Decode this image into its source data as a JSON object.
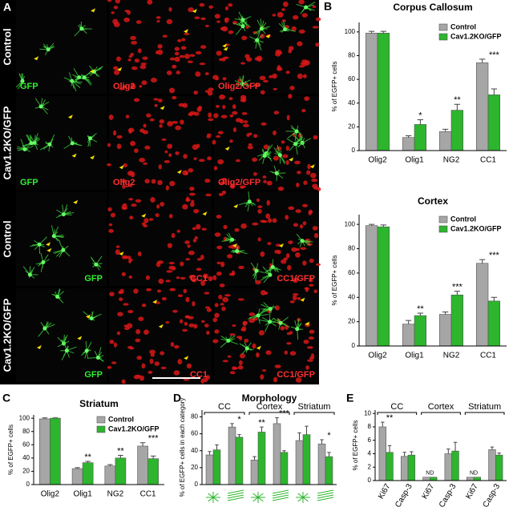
{
  "figure": {
    "panel_labels": [
      "A",
      "B",
      "C",
      "D",
      "E"
    ],
    "row_labels": [
      "Control",
      "Cav1.2KO/GFP",
      "Control",
      "Cav1.2KO/GFP"
    ],
    "image_labels": [
      [
        "GFP",
        "Olig2",
        "Olig2/GFP"
      ],
      [
        "GFP",
        "Olig2",
        "Olig2/GFP"
      ],
      [
        "GFP",
        "CC1",
        "CC1/GFP"
      ],
      [
        "GFP",
        "CC1",
        "CC1/GFP"
      ]
    ]
  },
  "chart_data": [
    {
      "type": "bar",
      "title": "Corpus Callosum",
      "y_label": "% of EGFP+ cells",
      "categories": [
        "Olig2",
        "Olig1",
        "NG2",
        "CC1"
      ],
      "series": [
        {
          "name": "Control",
          "color": "#a6a6a6",
          "values": [
            99,
            11,
            16,
            74
          ],
          "errors": [
            1.5,
            1.5,
            2,
            3
          ]
        },
        {
          "name": "Cav1.2KO/GFP",
          "color": "#2db52d",
          "values": [
            99,
            22,
            34,
            47
          ],
          "errors": [
            1.5,
            4,
            5,
            5
          ]
        }
      ],
      "annotations": [
        null,
        "*",
        "**",
        "***"
      ],
      "ylim": [
        0,
        108
      ],
      "yticks": [
        0,
        20,
        40,
        60,
        80,
        100
      ],
      "legend": "upper right"
    },
    {
      "type": "bar",
      "title": "Cortex",
      "y_label": "% of EGFP+ cells",
      "categories": [
        "Olig2",
        "Olig1",
        "NG2",
        "CC1"
      ],
      "series": [
        {
          "name": "Control",
          "color": "#a6a6a6",
          "values": [
            99,
            18,
            26,
            68
          ],
          "errors": [
            1,
            3,
            2,
            3
          ]
        },
        {
          "name": "Cav1.2KO/GFP",
          "color": "#2db52d",
          "values": [
            98,
            25,
            42,
            37
          ],
          "errors": [
            1.5,
            2,
            3,
            3
          ]
        }
      ],
      "annotations": [
        null,
        "**",
        "***",
        "***"
      ],
      "ylim": [
        0,
        108
      ],
      "yticks": [
        0,
        20,
        40,
        60,
        80,
        100
      ],
      "legend": "upper right"
    },
    {
      "type": "bar",
      "title": "Striatum",
      "y_label": "% of EGFP+ cells",
      "categories": [
        "Olig2",
        "Olig1",
        "NG2",
        "CC1"
      ],
      "series": [
        {
          "name": "Control",
          "color": "#a6a6a6",
          "values": [
            99,
            24,
            28,
            58
          ],
          "errors": [
            1.5,
            1.5,
            2,
            5
          ]
        },
        {
          "name": "Cav1.2KO/GFP",
          "color": "#2db52d",
          "values": [
            100,
            33,
            40,
            39
          ],
          "errors": [
            0.5,
            2,
            4,
            4
          ]
        }
      ],
      "annotations": [
        null,
        "**",
        "**",
        "***"
      ],
      "ylim": [
        0,
        105
      ],
      "yticks": [
        0,
        20,
        40,
        60,
        80,
        100
      ],
      "legend": "upper right"
    },
    {
      "type": "bar",
      "title": "Morphology",
      "y_label": "% of EGFP+ cells in each category",
      "categories": [
        null,
        null,
        null,
        null,
        null,
        null
      ],
      "groups": [
        "CC",
        "Cortex",
        "Striatum"
      ],
      "series": [
        {
          "name": "Control",
          "color": "#a6a6a6",
          "values": [
            35,
            68,
            29,
            72,
            52,
            48
          ],
          "errors": [
            4,
            4,
            4,
            7,
            9,
            5
          ]
        },
        {
          "name": "Cav1.2KO/GFP",
          "color": "#2db52d",
          "values": [
            41,
            56,
            62,
            38,
            59,
            33
          ],
          "errors": [
            6,
            3,
            6,
            2,
            10,
            5
          ]
        }
      ],
      "annotations": [
        null,
        "*",
        "**",
        "***",
        null,
        "*"
      ],
      "ylim": [
        0,
        88
      ],
      "yticks": [
        0,
        20,
        40,
        60,
        80
      ]
    },
    {
      "type": "bar",
      "y_label": "% of EGFP+ cells",
      "categories": [
        "Ki67",
        "Casp-3",
        "Ki67",
        "Casp-3",
        "Ki67",
        "Casp-3"
      ],
      "groups": [
        "CC",
        "Cortex",
        "Striatum"
      ],
      "series": [
        {
          "name": "Control",
          "color": "#a6a6a6",
          "values": [
            8,
            3.6,
            0.5,
            4,
            0.5,
            4.6
          ],
          "errors": [
            0.7,
            0.6,
            0,
            0.7,
            0,
            0.4
          ]
        },
        {
          "name": "Cav1.2KO/GFP",
          "color": "#2db52d",
          "values": [
            4.2,
            3.8,
            0.5,
            4.4,
            0.5,
            3.8
          ],
          "errors": [
            1,
            0.5,
            0,
            1.3,
            0,
            0.3
          ]
        }
      ],
      "annotations": [
        "**",
        null,
        "ND",
        null,
        "ND",
        null
      ],
      "ylim": [
        0,
        10.5
      ],
      "yticks": [
        0,
        2,
        4,
        6,
        8,
        10
      ]
    }
  ]
}
